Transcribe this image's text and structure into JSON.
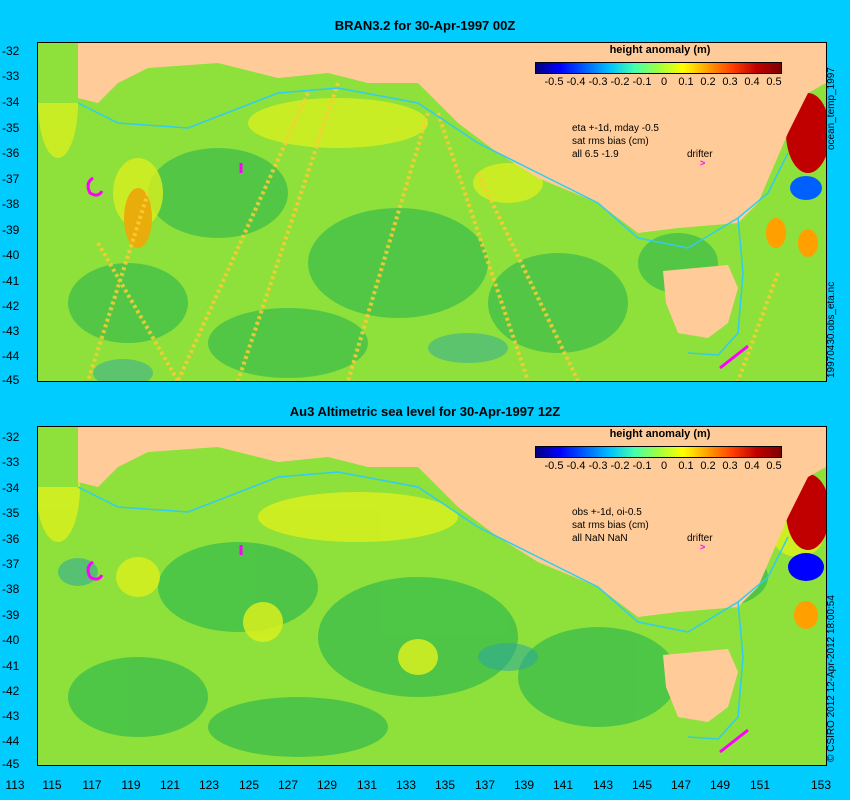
{
  "panels": [
    {
      "title": "BRAN3.2 for 30-Apr-1997 00Z",
      "colorbar_title": "height anomaly (m)",
      "annotation": [
        "eta +-1d, mday -0.5",
        "sat rms bias (cm)",
        "all 6.5 -1.9"
      ],
      "drifter_label": "drifter",
      "side_label_top": "ocean_temp_1997",
      "side_label_bottom": "19970430.obs_eta.nc"
    },
    {
      "title": "Au3 Altimetric sea level  for 30-Apr-1997 12Z",
      "colorbar_title": "height anomaly (m)",
      "annotation": [
        "obs +-1d, oi-0.5",
        "sat rms bias (cm)",
        "all NaN NaN"
      ],
      "drifter_label": "drifter",
      "side_label": "© CSIRO 2012  12-Apr-2012 18:00:54"
    }
  ],
  "colorbar_ticks": [
    "-0.5",
    "-0.4",
    "-0.3",
    "-0.2",
    "-0.1",
    "0",
    "0.1",
    "0.2",
    "0.3",
    "0.4",
    "0.5"
  ],
  "colorbar_colors": [
    "#000080",
    "#0000ff",
    "#00c0ff",
    "#a0ff40",
    "#ffff00",
    "#ff4000",
    "#800000"
  ],
  "y_ticks": [
    "-32",
    "-33",
    "-34",
    "-35",
    "-36",
    "-37",
    "-38",
    "-39",
    "-40",
    "-41",
    "-42",
    "-43",
    "-44",
    "-45"
  ],
  "x_ticks": [
    "113",
    "115",
    "117",
    "119",
    "121",
    "123",
    "125",
    "127",
    "129",
    "131",
    "133",
    "135",
    "137",
    "139",
    "141",
    "143",
    "145",
    "147",
    "149",
    "151",
    "153"
  ],
  "colors": {
    "background": "#00ccff",
    "land": "#ffcc99",
    "ocean_base": "#8ee03a",
    "ocean_dark": "#3fbf4a",
    "ocean_bright": "#d8f020",
    "shelf_line": "#33ccee"
  }
}
